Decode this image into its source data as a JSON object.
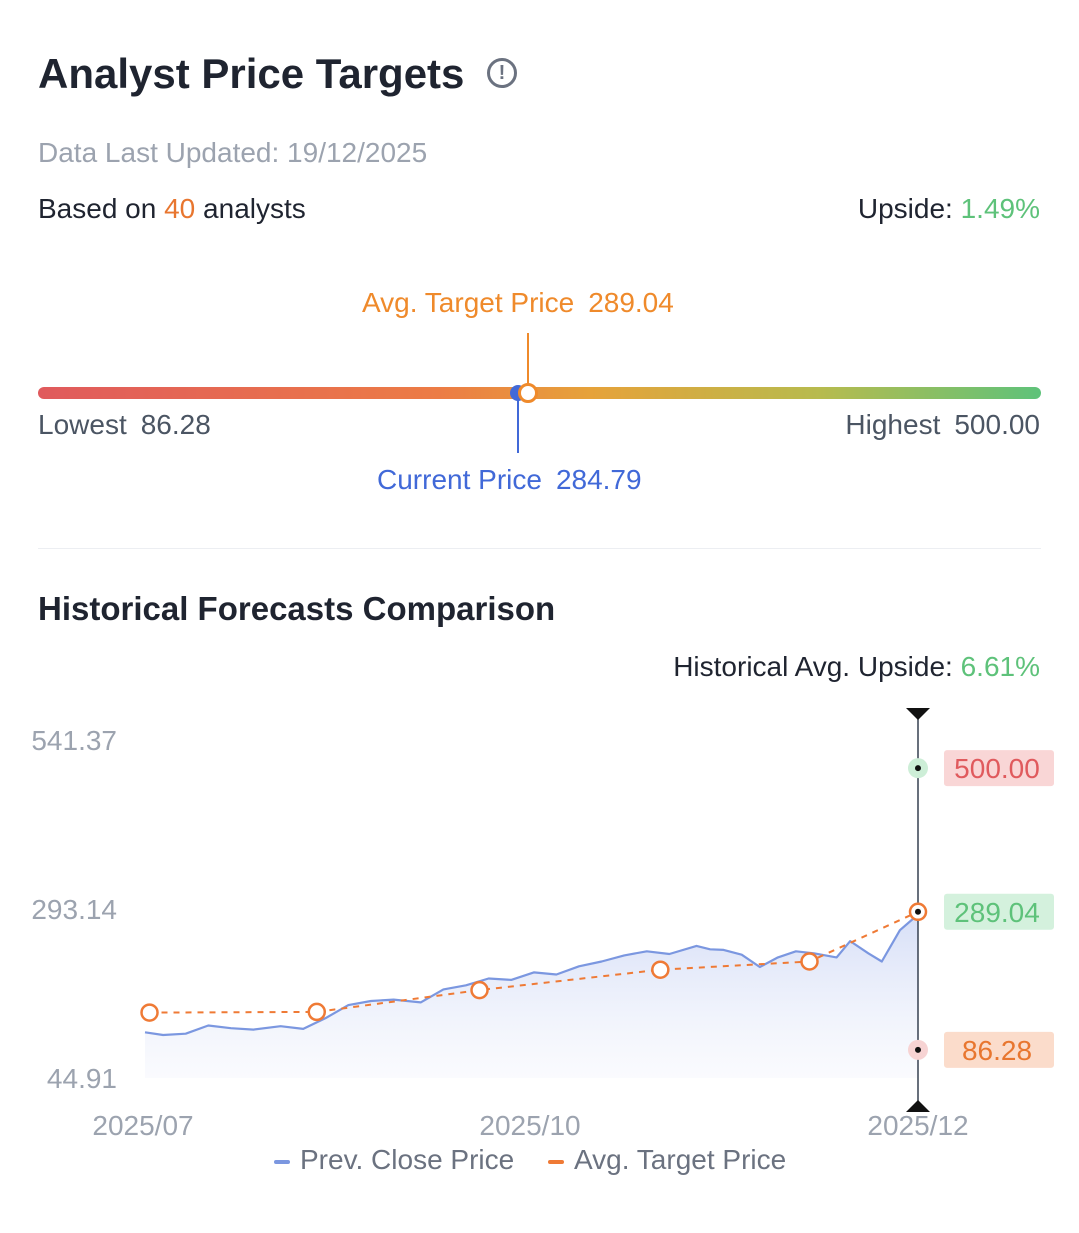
{
  "header": {
    "title": "Analyst Price Targets",
    "updated": "Data Last Updated: 19/12/2025",
    "based_prefix": "Based on",
    "analyst_count": "40",
    "based_suffix": "analysts",
    "upside_label": "Upside:",
    "upside_value": "1.49%"
  },
  "range": {
    "avg_label": "Avg. Target Price",
    "avg_value": "289.04",
    "current_label": "Current Price",
    "current_value": "284.79",
    "lowest_label": "Lowest",
    "lowest_value": "86.28",
    "highest_label": "Highest",
    "highest_value": "500.00",
    "low": 86.28,
    "high": 500.0,
    "avg": 289.04,
    "current": 284.79
  },
  "history": {
    "title": "Historical Forecasts Comparison",
    "upside_label": "Historical Avg. Upside:",
    "upside_value": "6.61%"
  },
  "colors": {
    "orange": "#e8762f",
    "green": "#5ec27a",
    "blue": "#4169d8",
    "red": "#e05a5d",
    "price_line": "#7b97e0",
    "target_line": "#ef7a35"
  },
  "chart_data": {
    "type": "line",
    "title": "Historical Forecasts Comparison",
    "x_tick_labels": [
      "2025/07",
      "2025/10",
      "2025/12"
    ],
    "y_tick_labels": [
      "541.37",
      "293.14",
      "44.91"
    ],
    "ylim": [
      44.91,
      541.37
    ],
    "grid": false,
    "legend": [
      "Prev. Close Price",
      "Avg. Target Price"
    ],
    "legend_position": "bottom",
    "series": [
      {
        "name": "Prev. Close Price",
        "x": [
          "2025/07/01",
          "2025/07/05",
          "2025/07/10",
          "2025/07/15",
          "2025/07/20",
          "2025/07/25",
          "2025/07/31",
          "2025/08/05",
          "2025/08/10",
          "2025/08/15",
          "2025/08/20",
          "2025/08/25",
          "2025/08/31",
          "2025/09/05",
          "2025/09/10",
          "2025/09/15",
          "2025/09/20",
          "2025/09/25",
          "2025/09/30",
          "2025/10/05",
          "2025/10/10",
          "2025/10/15",
          "2025/10/20",
          "2025/10/25",
          "2025/10/31",
          "2025/11/03",
          "2025/11/06",
          "2025/11/10",
          "2025/11/14",
          "2025/11/18",
          "2025/11/22",
          "2025/11/26",
          "2025/12/01",
          "2025/12/04",
          "2025/12/08",
          "2025/12/11",
          "2025/12/15",
          "2025/12/19"
        ],
        "values": [
          112,
          108,
          110,
          122,
          118,
          116,
          121,
          117,
          133,
          152,
          158,
          160,
          156,
          175,
          181,
          191,
          189,
          200,
          197,
          209,
          216,
          225,
          231,
          227,
          239,
          234,
          233,
          226,
          208,
          222,
          231,
          228,
          222,
          246,
          228,
          216,
          262,
          285
        ]
      },
      {
        "name": "Avg. Target Price",
        "x": [
          "2025/07/02",
          "2025/08/08",
          "2025/09/13",
          "2025/10/23",
          "2025/11/25",
          "2025/12/19"
        ],
        "values": [
          141,
          142,
          174,
          204,
          216,
          289.04
        ]
      }
    ],
    "current_markers": {
      "highest": "500.00",
      "average": "289.04",
      "lowest": "86.28",
      "highest_value": 500.0,
      "average_value": 289.04,
      "lowest_value": 86.28
    }
  },
  "legend": {
    "price_label": "Prev. Close Price",
    "target_label": "Avg. Target Price"
  }
}
